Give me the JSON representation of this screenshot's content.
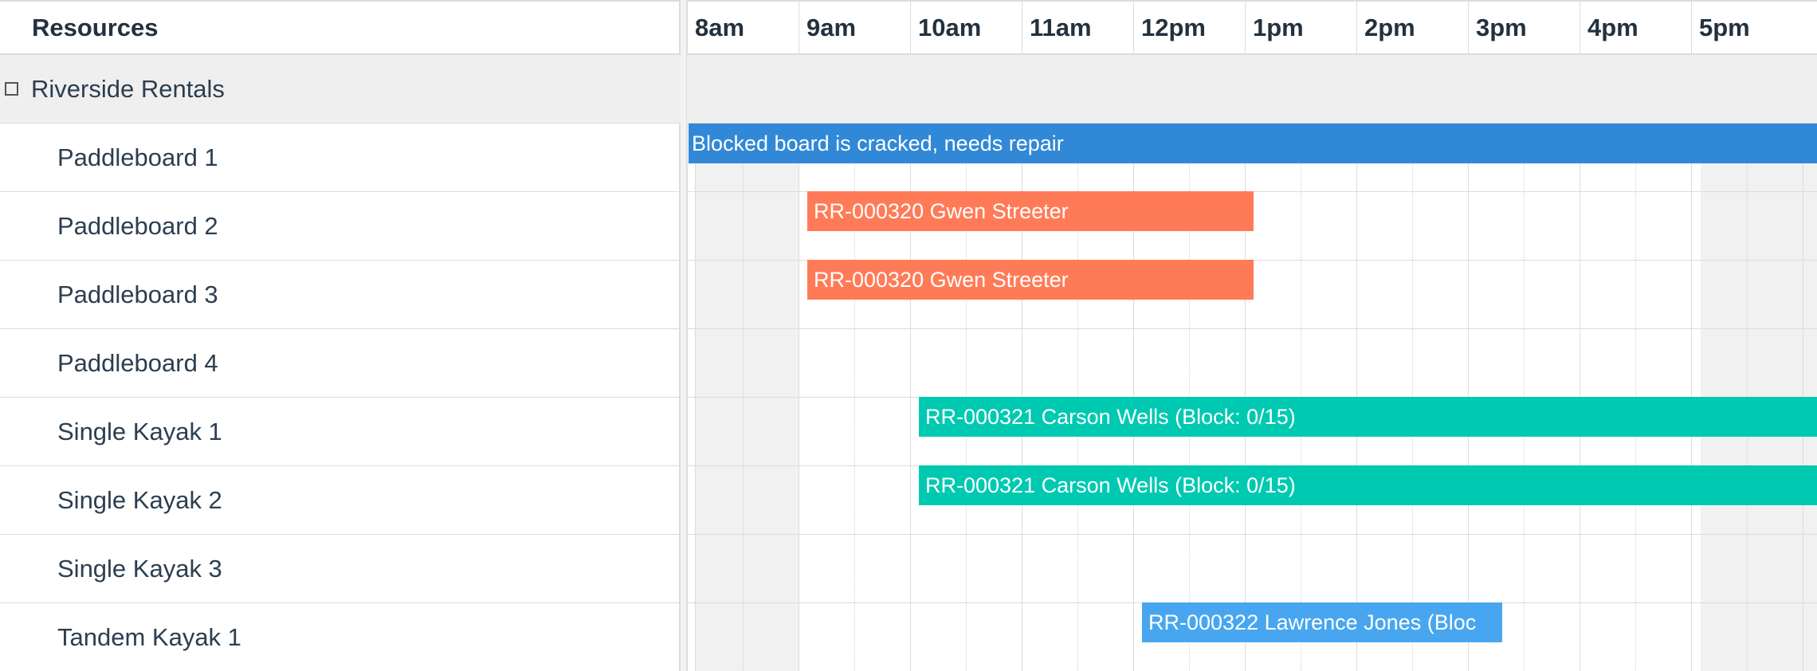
{
  "resources_header": "Resources",
  "group": {
    "label": "Riverside Rentals"
  },
  "resources": [
    "Paddleboard 1",
    "Paddleboard 2",
    "Paddleboard 3",
    "Paddleboard 4",
    "Single Kayak 1",
    "Single Kayak 2",
    "Single Kayak 3",
    "Tandem Kayak 1"
  ],
  "hours": [
    "8am",
    "9am",
    "10am",
    "11am",
    "12pm",
    "1pm",
    "2pm",
    "3pm",
    "4pm",
    "5pm"
  ],
  "events": [
    {
      "resource": 0,
      "start": "8:00",
      "end": "6:00pm+",
      "label": "Blocked board is cracked, needs repair",
      "color": "#3188d7",
      "kind": "blocked"
    },
    {
      "resource": 1,
      "start": "9:00",
      "end": "1:00pm",
      "label": "RR-000320 Gwen Streeter",
      "color": "#ff7b57",
      "kind": "orange"
    },
    {
      "resource": 2,
      "start": "9:00",
      "end": "1:00pm",
      "label": "RR-000320 Gwen Streeter",
      "color": "#ff7b57",
      "kind": "orange"
    },
    {
      "resource": 4,
      "start": "10:00",
      "end": "6:00pm+",
      "label": "RR-000321 Carson Wells (Block: 0/15)",
      "color": "#00c9b1",
      "kind": "teal"
    },
    {
      "resource": 5,
      "start": "10:00",
      "end": "6:00pm+",
      "label": "RR-000321 Carson Wells (Block: 0/15)",
      "color": "#00c9b1",
      "kind": "teal"
    },
    {
      "resource": 7,
      "start": "12:00",
      "end": "3:15pm",
      "label": "RR-000322 Lawrence Jones (Bloc",
      "color": "#47a6ef",
      "kind": "blue"
    }
  ],
  "colors": {
    "blocked": "#3188d7",
    "booking_orange": "#ff7b57",
    "booking_teal": "#00c9b1",
    "booking_blue": "#47a6ef",
    "off_hours": "#f1f1f1",
    "group_row": "#efefef"
  }
}
